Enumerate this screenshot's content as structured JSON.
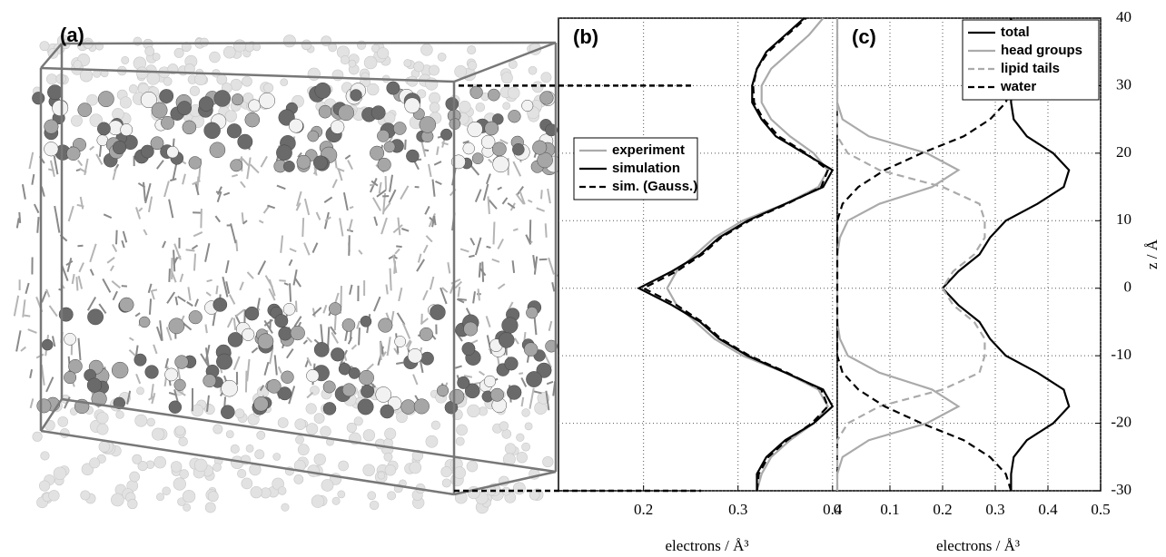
{
  "figure_label": "(a)",
  "chart_data": [
    {
      "type": "line",
      "panel_label": "(b)",
      "xlabel": "electrons / Å³",
      "xlim": [
        0.11,
        0.405
      ],
      "xticks": [
        0.2,
        0.3,
        0.4
      ],
      "ylim": [
        -30,
        40
      ],
      "grid": true,
      "legend": "center left",
      "y": [
        -30,
        -27.5,
        -25,
        -22.5,
        -20,
        -17.5,
        -15,
        -12.5,
        -10,
        -7.5,
        -5,
        -2.5,
        0,
        2.5,
        5,
        7.5,
        10,
        12.5,
        15,
        17.5,
        20,
        22.5,
        25,
        27.5,
        30,
        32.5,
        35,
        37.5,
        40
      ],
      "series": [
        {
          "name": "experiment",
          "color": "#aaaaaa",
          "dash": false,
          "values": [
            0.32,
            0.325,
            0.335,
            0.355,
            0.38,
            0.395,
            0.385,
            0.35,
            0.305,
            0.275,
            0.255,
            0.235,
            0.225,
            0.235,
            0.255,
            0.275,
            0.305,
            0.35,
            0.385,
            0.395,
            0.38,
            0.355,
            0.335,
            0.325,
            0.325,
            0.335,
            0.355,
            0.375,
            0.39
          ]
        },
        {
          "name": "simulation",
          "color": "#000000",
          "dash": false,
          "values": [
            0.32,
            0.32,
            0.33,
            0.35,
            0.38,
            0.4,
            0.39,
            0.35,
            0.31,
            0.28,
            0.26,
            0.23,
            0.195,
            0.23,
            0.26,
            0.28,
            0.31,
            0.35,
            0.39,
            0.4,
            0.37,
            0.34,
            0.325,
            0.315,
            0.315,
            0.32,
            0.33,
            0.35,
            0.37
          ]
        },
        {
          "name": "sim. (Gauss.)",
          "color": "#000000",
          "dash": true,
          "values": [
            0.32,
            0.322,
            0.332,
            0.352,
            0.378,
            0.395,
            0.388,
            0.352,
            0.312,
            0.282,
            0.262,
            0.235,
            0.2,
            0.235,
            0.262,
            0.282,
            0.312,
            0.352,
            0.388,
            0.395,
            0.372,
            0.343,
            0.327,
            0.317,
            0.316,
            0.32,
            0.332,
            0.352,
            0.372
          ]
        }
      ]
    },
    {
      "type": "line",
      "panel_label": "(c)",
      "xlabel": "electrons / Å³",
      "ylabel": "z / Å",
      "xlim": [
        0,
        0.5
      ],
      "xticks": [
        0,
        0.1,
        0.2,
        0.3,
        0.4,
        0.5
      ],
      "ylim": [
        -30,
        40
      ],
      "yticks": [
        -30,
        -20,
        -10,
        0,
        10,
        20,
        30,
        40
      ],
      "grid": true,
      "legend": "upper right",
      "y": [
        -30,
        -27.5,
        -25,
        -22.5,
        -20,
        -17.5,
        -15,
        -12.5,
        -10,
        -7.5,
        -5,
        -2.5,
        0,
        2.5,
        5,
        7.5,
        10,
        12.5,
        15,
        17.5,
        20,
        22.5,
        25,
        27.5,
        30,
        32.5,
        35,
        37.5,
        40
      ],
      "series": [
        {
          "name": "total",
          "color": "#000000",
          "dash": false,
          "values": [
            0.33,
            0.33,
            0.335,
            0.36,
            0.41,
            0.44,
            0.43,
            0.38,
            0.32,
            0.29,
            0.27,
            0.23,
            0.2,
            0.23,
            0.27,
            0.29,
            0.32,
            0.38,
            0.43,
            0.44,
            0.41,
            0.36,
            0.335,
            0.33,
            0.33,
            0.33,
            0.33,
            0.33,
            0.33
          ]
        },
        {
          "name": "head groups",
          "color": "#aaaaaa",
          "dash": false,
          "values": [
            0,
            0,
            0.01,
            0.06,
            0.17,
            0.23,
            0.18,
            0.08,
            0.02,
            0.005,
            0,
            0,
            0,
            0,
            0,
            0.005,
            0.02,
            0.08,
            0.18,
            0.23,
            0.17,
            0.06,
            0.01,
            0,
            0,
            0,
            0,
            0,
            0
          ]
        },
        {
          "name": "lipid tails",
          "color": "#aaaaaa",
          "dash": true,
          "values": [
            0,
            0,
            0,
            0,
            0.02,
            0.08,
            0.2,
            0.27,
            0.28,
            0.28,
            0.26,
            0.22,
            0.2,
            0.22,
            0.26,
            0.28,
            0.28,
            0.27,
            0.2,
            0.08,
            0.02,
            0,
            0,
            0,
            0,
            0,
            0,
            0,
            0
          ]
        },
        {
          "name": "water",
          "color": "#000000",
          "dash": true,
          "values": [
            0.33,
            0.32,
            0.29,
            0.24,
            0.16,
            0.09,
            0.04,
            0.01,
            0,
            0,
            0,
            0,
            0,
            0,
            0,
            0,
            0,
            0.01,
            0.04,
            0.09,
            0.16,
            0.24,
            0.29,
            0.32,
            0.33,
            0.33,
            0.33,
            0.33,
            0.33
          ]
        }
      ]
    }
  ]
}
